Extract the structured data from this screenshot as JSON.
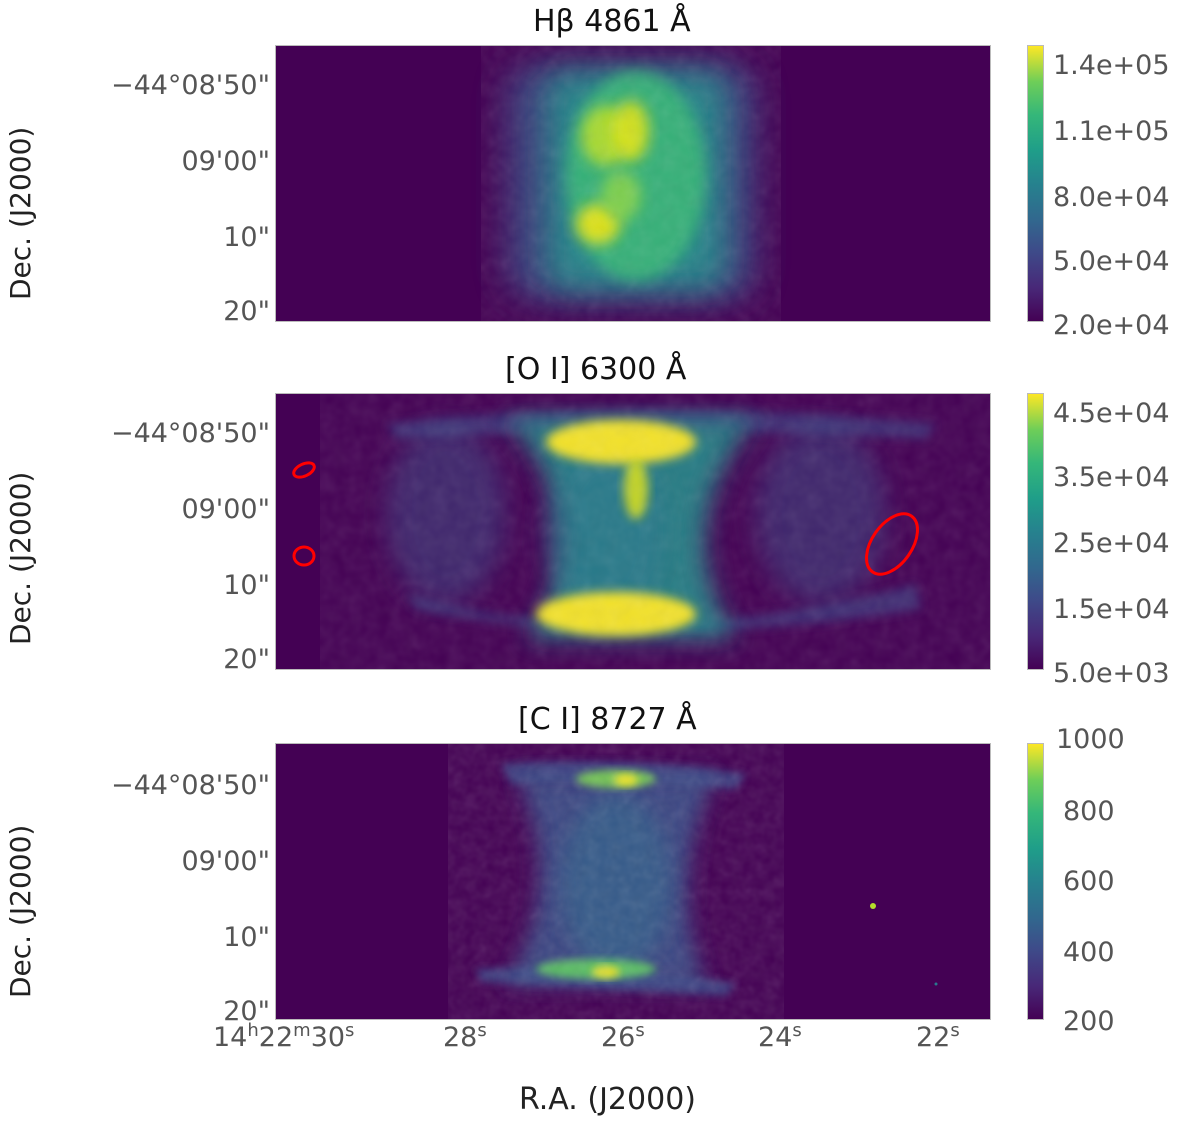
{
  "panels": [
    {
      "title": "Hβ 4861 Å",
      "colorbar_ticks": [
        "1.4e+05",
        "1.1e+05",
        "8.0e+04",
        "5.0e+04",
        "2.0e+04"
      ]
    },
    {
      "title": "[O I] 6300 Å",
      "colorbar_ticks": [
        "4.5e+04",
        "3.5e+04",
        "2.5e+04",
        "1.5e+04",
        "5.0e+03"
      ]
    },
    {
      "title": "[C I] 8727 Å",
      "colorbar_ticks": [
        "1000",
        "800",
        "600",
        "400",
        "200"
      ]
    }
  ],
  "y_axis": {
    "label": "Dec. (J2000)",
    "ticks": [
      "−44°08'50\"",
      "09'00\"",
      "10\"",
      "20\""
    ]
  },
  "x_axis": {
    "label": "R.A. (J2000)",
    "ticks": [
      {
        "main": "14",
        "sup1": "h",
        "mid": "22",
        "sup2": "m",
        "last": "30",
        "sup3": "s"
      },
      {
        "main": "28",
        "sup1": "s"
      },
      {
        "main": "26",
        "sup1": "s"
      },
      {
        "main": "24",
        "sup1": "s"
      },
      {
        "main": "22",
        "sup1": "s"
      }
    ]
  },
  "colormap": "viridis",
  "region_color": "#ff0000"
}
